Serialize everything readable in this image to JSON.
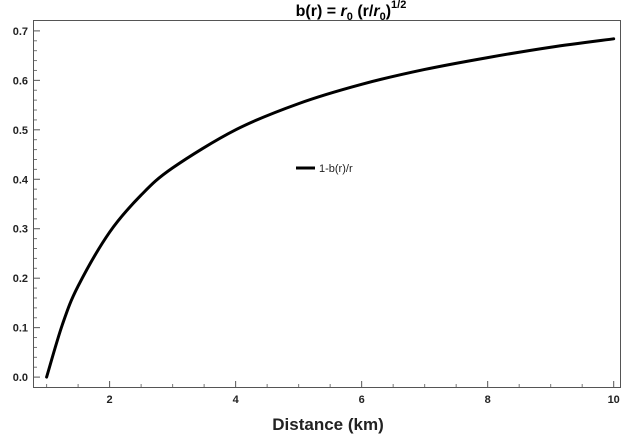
{
  "chart_data": {
    "type": "line",
    "title": "b(r) = r0 (r/r0)1/2",
    "title_parts": {
      "main": "b(r) = ",
      "r": "r",
      "sub0": "0",
      "mid": " (r/",
      "r2": "r",
      "sub2": "0",
      "close": ")",
      "exponent": "1/2"
    },
    "xlabel": "Distance (km)",
    "ylabel": "",
    "xlim": [
      0.8,
      10.1
    ],
    "ylim": [
      -0.02,
      0.72
    ],
    "xticks": [
      2,
      4,
      6,
      8,
      10
    ],
    "yticks": [
      0.0,
      0.1,
      0.2,
      0.3,
      0.4,
      0.5,
      0.6,
      0.7
    ],
    "ytick_labels": [
      "0.0",
      "0.1",
      "0.2",
      "0.3",
      "0.4",
      "0.5",
      "0.6",
      "0.7"
    ],
    "grid": false,
    "legend_position": "center",
    "series": [
      {
        "name": "1-b(r)/r",
        "color": "#000000",
        "x": [
          1.0,
          1.25,
          1.5,
          2.0,
          2.5,
          3.0,
          4.0,
          5.0,
          6.0,
          7.0,
          8.0,
          9.0,
          10.0
        ],
        "y": [
          0.0,
          0.106,
          0.184,
          0.293,
          0.368,
          0.423,
          0.5,
          0.553,
          0.592,
          0.622,
          0.646,
          0.667,
          0.684
        ]
      }
    ]
  }
}
